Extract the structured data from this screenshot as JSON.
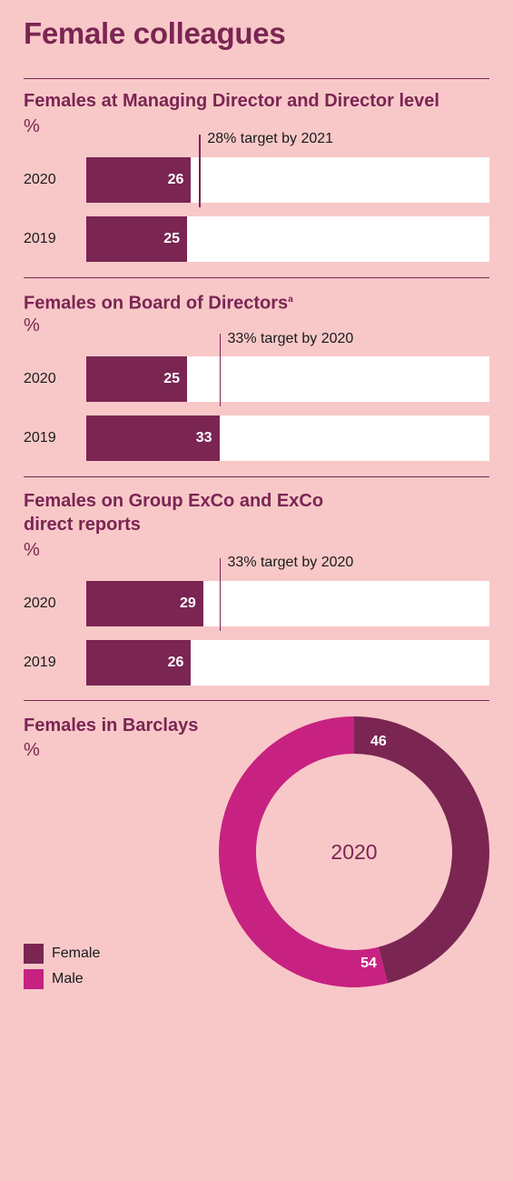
{
  "page": {
    "title": "Female colleagues"
  },
  "colors": {
    "background": "#f8c8c8",
    "brand": "#7b2553",
    "male": "#c72281",
    "track": "#ffffff"
  },
  "chart_data": [
    {
      "type": "bar",
      "title": "Females at Managing Director and Director level",
      "unit": "%",
      "categories": [
        "2020",
        "2019"
      ],
      "values": [
        26,
        25
      ],
      "xlim": [
        0,
        100
      ],
      "target": {
        "value": 28,
        "label": "28% target by 2021"
      }
    },
    {
      "type": "bar",
      "title": "Females on Board of Directors",
      "title_superscript": "a",
      "unit": "%",
      "categories": [
        "2020",
        "2019"
      ],
      "values": [
        25,
        33
      ],
      "xlim": [
        0,
        100
      ],
      "target": {
        "value": 33,
        "label": "33% target by 2020"
      }
    },
    {
      "type": "bar",
      "title_line1": "Females on Group ExCo and ExCo",
      "title_line2": "direct reports",
      "unit": "%",
      "categories": [
        "2020",
        "2019"
      ],
      "values": [
        29,
        26
      ],
      "xlim": [
        0,
        100
      ],
      "target": {
        "value": 33,
        "label": "33% target by 2020"
      }
    },
    {
      "type": "pie",
      "title": "Females in Barclays",
      "unit": "%",
      "center_label": "2020",
      "categories": [
        "Female",
        "Male"
      ],
      "values": [
        46,
        54
      ],
      "colors": [
        "#7b2553",
        "#c72281"
      ],
      "legend": "bottom-left"
    }
  ]
}
